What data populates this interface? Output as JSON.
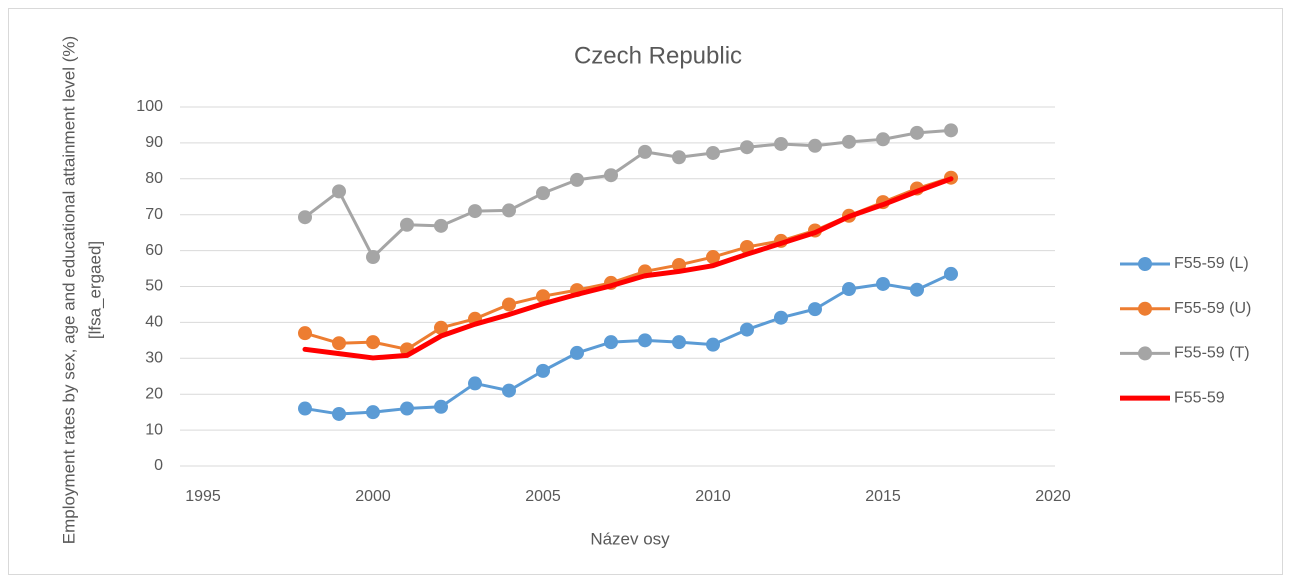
{
  "chart_data": {
    "type": "line",
    "title": "Czech Republic",
    "xlabel": "Název osy",
    "ylabel": [
      "Employment rates by sex, age and educational attainment level (%)",
      "[lfsa_ergaed]"
    ],
    "x": [
      1998,
      1999,
      2000,
      2001,
      2002,
      2003,
      2004,
      2005,
      2006,
      2007,
      2008,
      2009,
      2010,
      2011,
      2012,
      2013,
      2014,
      2015,
      2016,
      2017
    ],
    "series": [
      {
        "name": "F55-59 (L)",
        "color": "#5b9bd5",
        "marker": true,
        "width": 3,
        "values": [
          16,
          14.5,
          15,
          16,
          16.5,
          23,
          21,
          26.5,
          31.5,
          34.5,
          35,
          34.5,
          33.8,
          38,
          41.3,
          43.7,
          49.3,
          50.7,
          49.1,
          53.5
        ]
      },
      {
        "name": "F55-59 (U)",
        "color": "#ed7d31",
        "marker": true,
        "width": 3,
        "values": [
          37,
          34.2,
          34.5,
          32.5,
          38.5,
          41,
          45,
          47.3,
          49,
          51,
          54.2,
          56,
          58.2,
          61,
          62.7,
          65.6,
          69.7,
          73.5,
          77.3,
          80.3
        ]
      },
      {
        "name": "F55-59 (T)",
        "color": "#a5a5a5",
        "marker": true,
        "width": 3,
        "values": [
          69.3,
          76.5,
          58.2,
          67.2,
          66.9,
          71,
          71.2,
          76,
          79.7,
          81,
          87.5,
          86,
          87.2,
          88.8,
          89.7,
          89.2,
          90.3,
          91,
          92.8,
          93.5
        ]
      },
      {
        "name": "F55-59",
        "color": "#ff0000",
        "marker": false,
        "width": 5,
        "values": [
          32.5,
          31.3,
          30.1,
          30.8,
          36.2,
          39.5,
          42.2,
          45.2,
          47.8,
          50.2,
          53,
          54.2,
          55.8,
          59,
          62,
          65,
          69.5,
          72.8,
          76.5,
          80
        ]
      }
    ],
    "xlim": [
      1995,
      2020
    ],
    "xticks": [
      1995,
      2000,
      2005,
      2010,
      2015,
      2020
    ],
    "ylim": [
      0,
      100
    ],
    "yticks": [
      0,
      10,
      20,
      30,
      40,
      50,
      60,
      70,
      80,
      90,
      100
    ],
    "grid": true,
    "legend": "right"
  }
}
